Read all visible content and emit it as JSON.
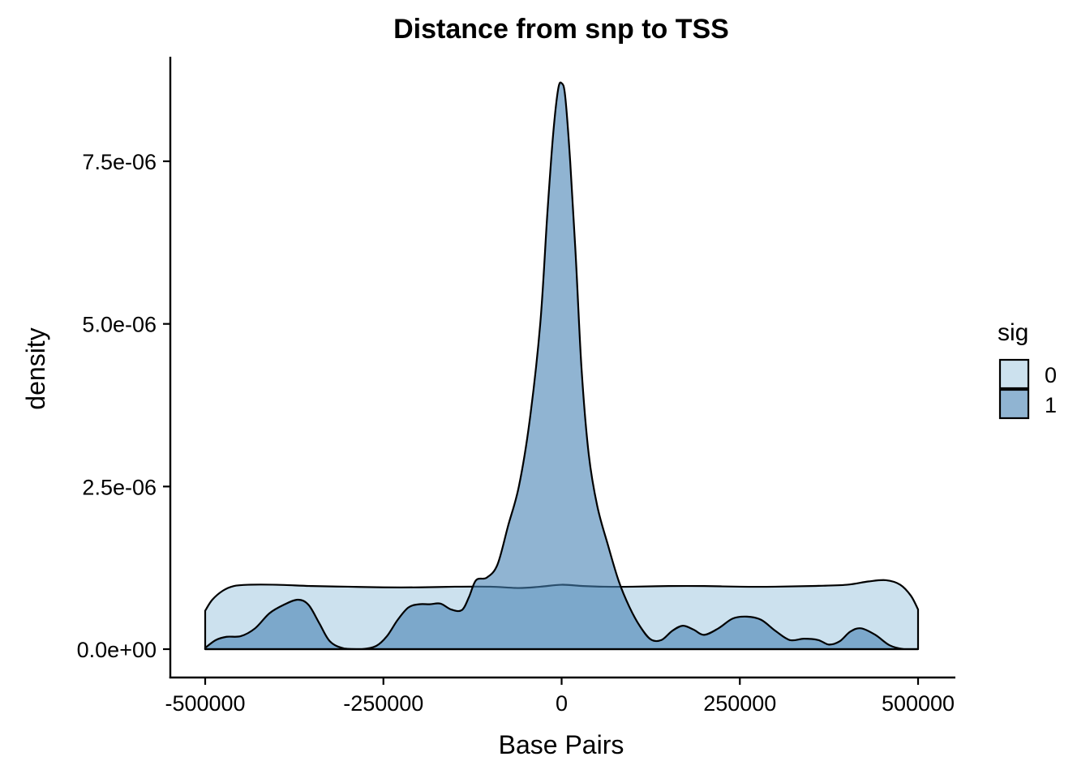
{
  "chart_data": {
    "type": "area",
    "title": "Distance from snp to TSS",
    "xlabel": "Base Pairs",
    "ylabel": "density",
    "xlim": [
      -500000,
      500000
    ],
    "ylim": [
      0,
      8.7e-06
    ],
    "x_ticks": [
      -500000,
      -250000,
      0,
      250000,
      500000
    ],
    "x_tick_labels": [
      "-500000",
      "-250000",
      "0",
      "250000",
      "500000"
    ],
    "y_ticks": [
      0,
      2.5e-06,
      5e-06,
      7.5e-06
    ],
    "y_tick_labels": [
      "0.0e+00",
      "2.5e-06",
      "5.0e-06",
      "7.5e-06"
    ],
    "grid": false,
    "legend": {
      "title": "sig",
      "position": "right"
    },
    "series": [
      {
        "name": "0",
        "color": "#cce1ee",
        "opacity": 1,
        "points": [
          [
            -500000,
            5.9e-07
          ],
          [
            -490000,
            7.6e-07
          ],
          [
            -475000,
            9e-07
          ],
          [
            -460000,
            9.7e-07
          ],
          [
            -440000,
            9.9e-07
          ],
          [
            -400000,
            9.9e-07
          ],
          [
            -350000,
            9.7e-07
          ],
          [
            -300000,
            9.6e-07
          ],
          [
            -250000,
            9.5e-07
          ],
          [
            -200000,
            9.5e-07
          ],
          [
            -150000,
            9.6e-07
          ],
          [
            -100000,
            9.6e-07
          ],
          [
            -60000,
            9.4e-07
          ],
          [
            -30000,
            9.6e-07
          ],
          [
            0,
            9.9e-07
          ],
          [
            30000,
            9.7e-07
          ],
          [
            60000,
            9.6e-07
          ],
          [
            100000,
            9.6e-07
          ],
          [
            150000,
            9.7e-07
          ],
          [
            200000,
            9.7e-07
          ],
          [
            250000,
            9.6e-07
          ],
          [
            300000,
            9.6e-07
          ],
          [
            350000,
            9.7e-07
          ],
          [
            400000,
            9.9e-07
          ],
          [
            430000,
            1.04e-06
          ],
          [
            455000,
            1.06e-06
          ],
          [
            475000,
            9.9e-07
          ],
          [
            490000,
            8.2e-07
          ],
          [
            500000,
            6.1e-07
          ]
        ]
      },
      {
        "name": "1",
        "color": "#4682b4",
        "opacity": 0.6,
        "points": [
          [
            -500000,
            2e-08
          ],
          [
            -485000,
            1.4e-07
          ],
          [
            -470000,
            1.9e-07
          ],
          [
            -450000,
            2e-07
          ],
          [
            -430000,
            3.2e-07
          ],
          [
            -410000,
            5.5e-07
          ],
          [
            -390000,
            6.8e-07
          ],
          [
            -370000,
            7.6e-07
          ],
          [
            -355000,
            6.8e-07
          ],
          [
            -340000,
            4e-07
          ],
          [
            -325000,
            1.2e-07
          ],
          [
            -305000,
            1e-08
          ],
          [
            -280000,
            0.0
          ],
          [
            -260000,
            5e-08
          ],
          [
            -245000,
            2e-07
          ],
          [
            -230000,
            4.5e-07
          ],
          [
            -215000,
            6.4e-07
          ],
          [
            -200000,
            6.9e-07
          ],
          [
            -185000,
            6.9e-07
          ],
          [
            -170000,
            7e-07
          ],
          [
            -155000,
            6.1e-07
          ],
          [
            -140000,
            6e-07
          ],
          [
            -130000,
            8e-07
          ],
          [
            -120000,
            1.06e-06
          ],
          [
            -105000,
            1.1e-06
          ],
          [
            -90000,
            1.3e-06
          ],
          [
            -75000,
            1.9e-06
          ],
          [
            -60000,
            2.5e-06
          ],
          [
            -45000,
            3.5e-06
          ],
          [
            -30000,
            5e-06
          ],
          [
            -20000,
            6.7e-06
          ],
          [
            -12000,
            7.9e-06
          ],
          [
            -5000,
            8.6e-06
          ],
          [
            0,
            8.7e-06
          ],
          [
            5000,
            8.5e-06
          ],
          [
            12000,
            7.5e-06
          ],
          [
            20000,
            6e-06
          ],
          [
            28000,
            4.3e-06
          ],
          [
            38000,
            3e-06
          ],
          [
            50000,
            2.2e-06
          ],
          [
            65000,
            1.6e-06
          ],
          [
            80000,
            1.05e-06
          ],
          [
            95000,
            6.5e-07
          ],
          [
            110000,
            3.5e-07
          ],
          [
            125000,
            1.5e-07
          ],
          [
            140000,
            1.4e-07
          ],
          [
            155000,
            2.8e-07
          ],
          [
            170000,
            3.6e-07
          ],
          [
            185000,
            3e-07
          ],
          [
            200000,
            2.2e-07
          ],
          [
            220000,
            3.2e-07
          ],
          [
            240000,
            4.7e-07
          ],
          [
            260000,
            5e-07
          ],
          [
            280000,
            4.5e-07
          ],
          [
            300000,
            2.8e-07
          ],
          [
            320000,
            1.4e-07
          ],
          [
            340000,
            1.6e-07
          ],
          [
            360000,
            1.4e-07
          ],
          [
            375000,
            7e-08
          ],
          [
            390000,
            1.2e-07
          ],
          [
            405000,
            2.7e-07
          ],
          [
            420000,
            3.2e-07
          ],
          [
            440000,
            2.2e-07
          ],
          [
            460000,
            6e-08
          ],
          [
            480000,
            0.0
          ],
          [
            500000,
            0.0
          ]
        ]
      }
    ]
  }
}
